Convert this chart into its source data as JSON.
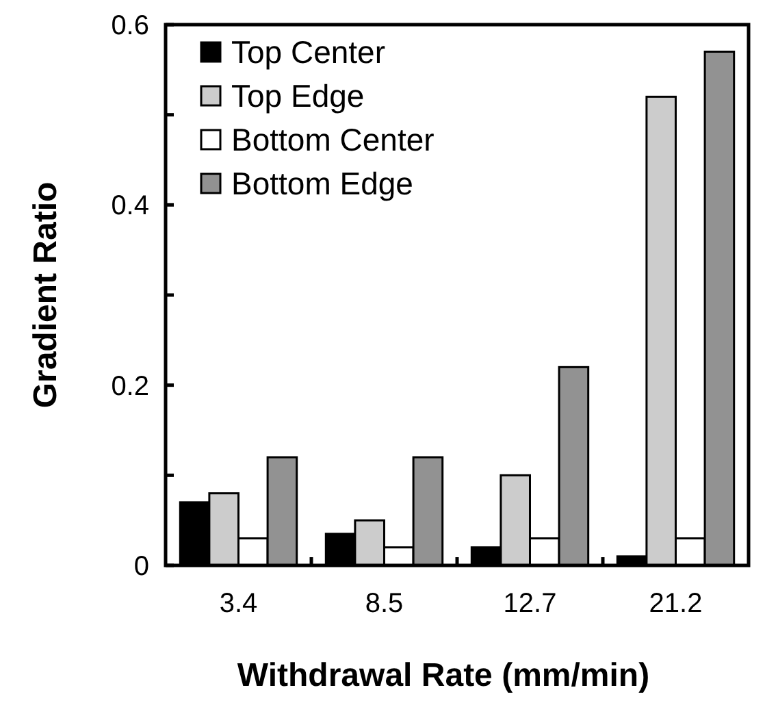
{
  "chart_data": {
    "type": "bar",
    "xlabel": "Withdrawal Rate (mm/min)",
    "ylabel": "Gradient Ratio",
    "categories": [
      "3.4",
      "8.5",
      "12.7",
      "21.2"
    ],
    "series": [
      {
        "name": "Top Center",
        "color": "#000000",
        "values": [
          0.07,
          0.035,
          0.02,
          0.01
        ]
      },
      {
        "name": "Top Edge",
        "color": "#cccccc",
        "values": [
          0.08,
          0.05,
          0.1,
          0.52
        ]
      },
      {
        "name": "Bottom Center",
        "color": "#ffffff",
        "values": [
          0.03,
          0.02,
          0.03,
          0.03
        ]
      },
      {
        "name": "Bottom Edge",
        "color": "#929292",
        "values": [
          0.12,
          0.12,
          0.22,
          0.57
        ]
      }
    ],
    "ylim": [
      0,
      0.6
    ],
    "yticks": [
      0,
      {
        "value": 0.1,
        "label": null
      },
      0.2,
      {
        "value": 0.3,
        "label": null
      },
      0.4,
      {
        "value": 0.5,
        "label": null
      },
      0.6
    ],
    "grid": false,
    "legend": "top left"
  }
}
